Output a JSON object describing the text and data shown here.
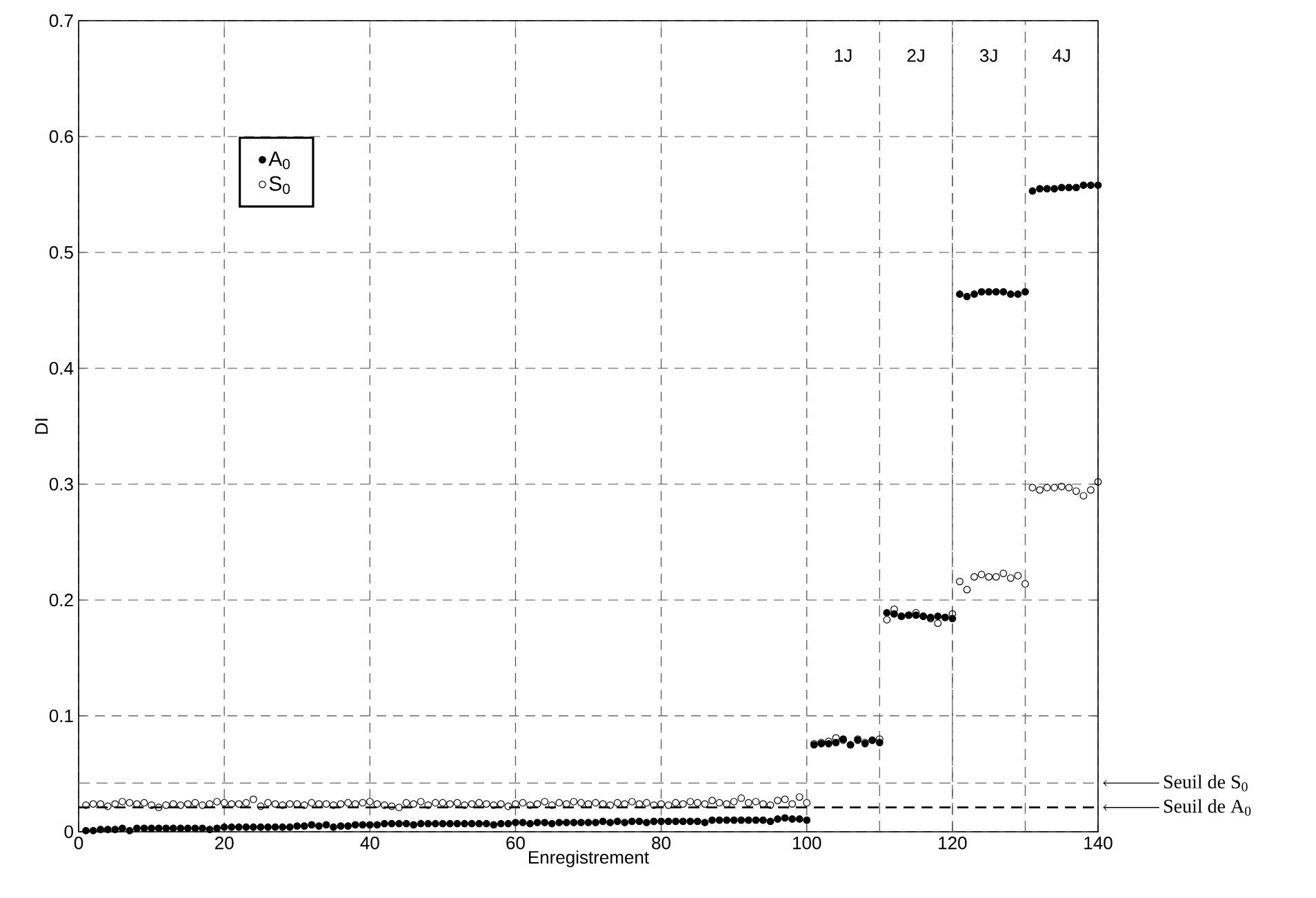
{
  "chart_data": {
    "type": "scatter",
    "xlabel": "Enregistrement",
    "ylabel": "DI",
    "x": [
      1,
      2,
      3,
      4,
      5,
      6,
      7,
      8,
      9,
      10,
      11,
      12,
      13,
      14,
      15,
      16,
      17,
      18,
      19,
      20,
      21,
      22,
      23,
      24,
      25,
      26,
      27,
      28,
      29,
      30,
      31,
      32,
      33,
      34,
      35,
      36,
      37,
      38,
      39,
      40,
      41,
      42,
      43,
      44,
      45,
      46,
      47,
      48,
      49,
      50,
      51,
      52,
      53,
      54,
      55,
      56,
      57,
      58,
      59,
      60,
      61,
      62,
      63,
      64,
      65,
      66,
      67,
      68,
      69,
      70,
      71,
      72,
      73,
      74,
      75,
      76,
      77,
      78,
      79,
      80,
      81,
      82,
      83,
      84,
      85,
      86,
      87,
      88,
      89,
      90,
      91,
      92,
      93,
      94,
      95,
      96,
      97,
      98,
      99,
      100,
      101,
      102,
      103,
      104,
      105,
      106,
      107,
      108,
      109,
      110,
      111,
      112,
      113,
      114,
      115,
      116,
      117,
      118,
      119,
      120,
      121,
      122,
      123,
      124,
      125,
      126,
      127,
      128,
      129,
      130,
      131,
      132,
      133,
      134,
      135,
      136,
      137,
      138,
      139,
      140
    ],
    "series": [
      {
        "name": "A$_{0}$",
        "color": "#000000",
        "values": [
          0.001,
          0.001,
          0.002,
          0.002,
          0.002,
          0.003,
          0.001,
          0.003,
          0.003,
          0.003,
          0.003,
          0.003,
          0.003,
          0.003,
          0.003,
          0.003,
          0.003,
          0.002,
          0.003,
          0.004,
          0.004,
          0.004,
          0.004,
          0.004,
          0.004,
          0.004,
          0.004,
          0.004,
          0.004,
          0.005,
          0.005,
          0.006,
          0.005,
          0.006,
          0.004,
          0.005,
          0.005,
          0.006,
          0.006,
          0.006,
          0.006,
          0.007,
          0.007,
          0.007,
          0.007,
          0.006,
          0.007,
          0.007,
          0.007,
          0.007,
          0.007,
          0.007,
          0.007,
          0.007,
          0.007,
          0.007,
          0.006,
          0.007,
          0.007,
          0.008,
          0.008,
          0.007,
          0.008,
          0.008,
          0.007,
          0.008,
          0.008,
          0.008,
          0.008,
          0.008,
          0.008,
          0.009,
          0.008,
          0.009,
          0.008,
          0.009,
          0.009,
          0.008,
          0.009,
          0.009,
          0.009,
          0.009,
          0.009,
          0.009,
          0.009,
          0.008,
          0.01,
          0.01,
          0.01,
          0.01,
          0.01,
          0.01,
          0.01,
          0.01,
          0.009,
          0.011,
          0.012,
          0.011,
          0.011,
          0.01,
          0.075,
          0.076,
          0.076,
          0.077,
          0.08,
          0.075,
          0.079,
          0.076,
          0.079,
          0.077,
          0.189,
          0.188,
          0.186,
          0.187,
          0.187,
          0.186,
          0.185,
          0.186,
          0.185,
          0.184,
          0.464,
          0.462,
          0.464,
          0.466,
          0.466,
          0.466,
          0.466,
          0.464,
          0.464,
          0.466,
          0.553,
          0.555,
          0.555,
          0.555,
          0.556,
          0.556,
          0.556,
          0.558,
          0.558,
          0.558
        ]
      },
      {
        "name": "S$_{0}$",
        "color": "#000000",
        "values": [
          0.023,
          0.024,
          0.024,
          0.022,
          0.024,
          0.026,
          0.025,
          0.024,
          0.025,
          0.023,
          0.021,
          0.023,
          0.024,
          0.023,
          0.024,
          0.025,
          0.023,
          0.024,
          0.026,
          0.025,
          0.024,
          0.024,
          0.025,
          0.028,
          0.022,
          0.025,
          0.024,
          0.023,
          0.024,
          0.024,
          0.023,
          0.025,
          0.024,
          0.024,
          0.023,
          0.024,
          0.025,
          0.024,
          0.025,
          0.026,
          0.024,
          0.023,
          0.022,
          0.021,
          0.025,
          0.024,
          0.026,
          0.023,
          0.025,
          0.025,
          0.024,
          0.025,
          0.023,
          0.024,
          0.025,
          0.024,
          0.023,
          0.024,
          0.022,
          0.024,
          0.025,
          0.023,
          0.024,
          0.026,
          0.023,
          0.025,
          0.024,
          0.026,
          0.025,
          0.024,
          0.025,
          0.024,
          0.023,
          0.025,
          0.024,
          0.026,
          0.024,
          0.025,
          0.023,
          0.024,
          0.023,
          0.025,
          0.024,
          0.026,
          0.025,
          0.024,
          0.027,
          0.025,
          0.024,
          0.026,
          0.029,
          0.025,
          0.026,
          0.024,
          0.023,
          0.027,
          0.028,
          0.024,
          0.03,
          0.025,
          0.076,
          0.077,
          0.078,
          0.081,
          0.079,
          0.075,
          0.08,
          0.077,
          0.079,
          0.08,
          0.183,
          0.192,
          0.186,
          0.187,
          0.189,
          0.186,
          0.184,
          0.18,
          0.185,
          0.188,
          0.216,
          0.209,
          0.22,
          0.222,
          0.22,
          0.22,
          0.223,
          0.219,
          0.221,
          0.214,
          0.297,
          0.295,
          0.297,
          0.297,
          0.298,
          0.297,
          0.294,
          0.29,
          0.295,
          0.302
        ]
      }
    ],
    "xlim": [
      0,
      140
    ],
    "ylim": [
      0,
      0.7
    ],
    "xticks": [
      0,
      20,
      40,
      60,
      80,
      100,
      120,
      140
    ],
    "yticks": [
      0,
      0.1,
      0.2,
      0.3,
      0.4,
      0.5,
      0.6,
      0.7
    ],
    "grid": true,
    "legend": "top left",
    "marker": "circle",
    "ref_lines": [
      {
        "axis": "x",
        "value": 110,
        "color": "#555555",
        "line_style": "dashed"
      },
      {
        "axis": "x",
        "value": 120,
        "color": "#555555",
        "line_style": "dashed"
      },
      {
        "axis": "x",
        "value": 130,
        "color": "#555555",
        "line_style": "dashed"
      },
      {
        "axis": "y",
        "value": 0.042,
        "label": "Seuil de S$_{0}$",
        "color": "#666666",
        "line_style": "dashed"
      },
      {
        "axis": "y",
        "value": 0.021,
        "label": "Seuil de A$_{0}$",
        "color": "#000000",
        "line_style": "dashed"
      }
    ],
    "annotations": [
      "1J",
      "2J",
      "3J",
      "4J"
    ]
  }
}
